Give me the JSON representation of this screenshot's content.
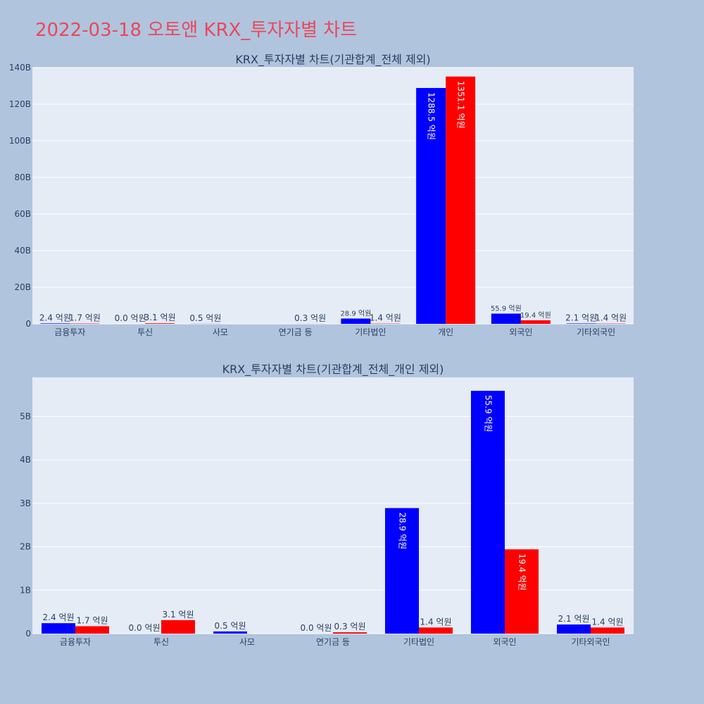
{
  "page": {
    "title": "2022-03-18 오토앤 KRX_투자자별 차트"
  },
  "colors": {
    "page_background": "#b0c4de",
    "plot_background": "#e5ecf6",
    "title": "#e8485a",
    "series_blue": "#0000ff",
    "series_red": "#ff0000"
  },
  "chart_data": [
    {
      "type": "bar",
      "title": "KRX_투자자별 차트(기관합계_전체 제외)",
      "categories": [
        "금융투자",
        "투신",
        "사모",
        "연기금 등",
        "기타법인",
        "개인",
        "외국인",
        "기타외국인"
      ],
      "series": [
        {
          "color": "#0000ff",
          "values": [
            240000000,
            0,
            50000000,
            0,
            2890000000,
            128850000000,
            5590000000,
            210000000
          ],
          "labels": [
            "2.4 억원",
            "0.0 억원",
            "0.5 억원",
            "",
            "28.9 억원",
            "1288.5 억원",
            "55.9 억원",
            "2.1 억원"
          ]
        },
        {
          "color": "#ff0000",
          "values": [
            170000000,
            310000000,
            0,
            30000000,
            140000000,
            135110000000,
            1940000000,
            140000000
          ],
          "labels": [
            "1.7 억원",
            "3.1 억원",
            "",
            "0.3 억원",
            "1.4 억원",
            "1351.1 억원",
            "19.4 억원",
            "1.4 억원"
          ]
        }
      ],
      "ylim": [
        0,
        140000000000
      ],
      "yticks": [
        0,
        20000000000,
        40000000000,
        60000000000,
        80000000000,
        100000000000,
        120000000000,
        140000000000
      ],
      "ytick_labels": [
        "0",
        "20B",
        "40B",
        "60B",
        "80B",
        "100B",
        "120B",
        "140B"
      ],
      "grid": true,
      "legend": "none"
    },
    {
      "type": "bar",
      "title": "KRX_투자자별 차트(기관합계_전체_개인 제외)",
      "categories": [
        "금융투자",
        "투신",
        "사모",
        "연기금 등",
        "기타법인",
        "외국인",
        "기타외국인"
      ],
      "series": [
        {
          "color": "#0000ff",
          "values": [
            240000000,
            0,
            50000000,
            0,
            2890000000,
            5590000000,
            210000000
          ],
          "labels": [
            "2.4 억원",
            "0.0 억원",
            "0.5 억원",
            "0.0 억원",
            "28.9 억원",
            "55.9 억원",
            "2.1 억원"
          ]
        },
        {
          "color": "#ff0000",
          "values": [
            170000000,
            310000000,
            0,
            30000000,
            140000000,
            1940000000,
            140000000
          ],
          "labels": [
            "1.7 억원",
            "3.1 억원",
            "",
            "0.3 억원",
            "1.4 억원",
            "19.4 억원",
            "1.4 억원"
          ]
        }
      ],
      "ylim": [
        0,
        5900000000
      ],
      "yticks": [
        0,
        1000000000,
        2000000000,
        3000000000,
        4000000000,
        5000000000
      ],
      "ytick_labels": [
        "0",
        "1B",
        "2B",
        "3B",
        "4B",
        "5B"
      ],
      "grid": true,
      "legend": "none"
    }
  ]
}
